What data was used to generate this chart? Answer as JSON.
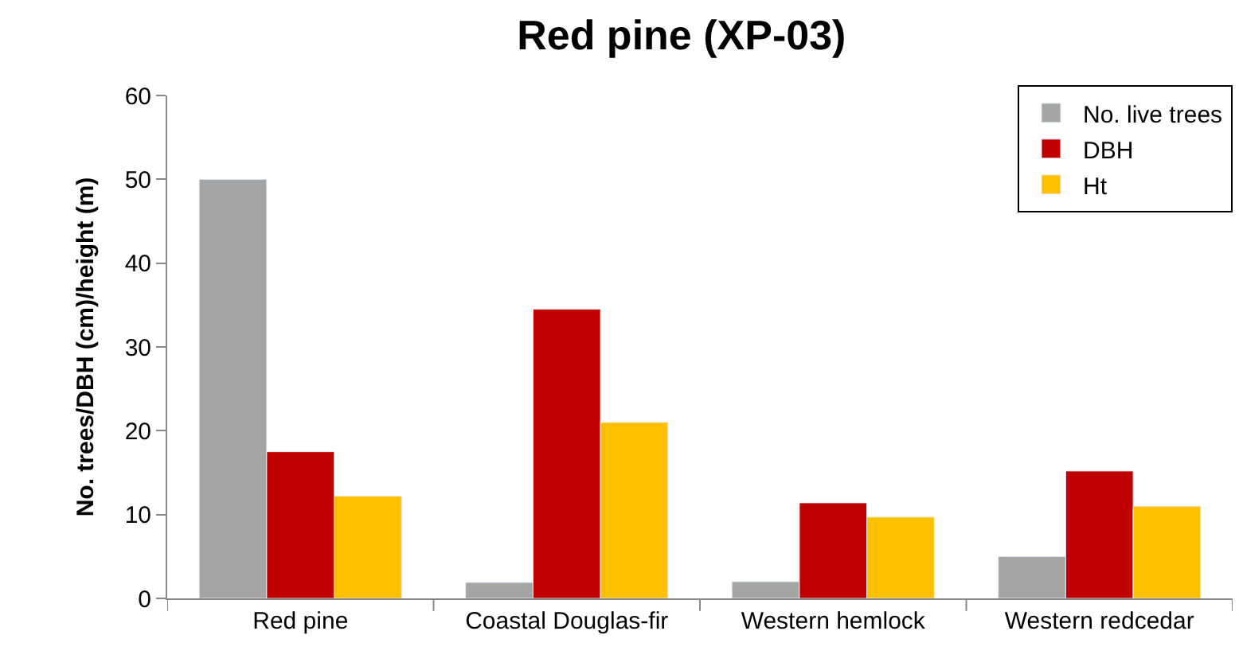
{
  "chart_data": {
    "type": "bar",
    "title": "Red pine (XP-03)",
    "ylabel": "No. trees/DBH (cm)/height (m)",
    "categories": [
      "Red pine",
      "Coastal Douglas-fir",
      "Western hemlock",
      "Western redcedar"
    ],
    "series": [
      {
        "name": "No. live trees",
        "color": "#a5a5a5",
        "values": [
          50,
          1.9,
          2,
          5
        ]
      },
      {
        "name": "DBH",
        "color": "#c00000",
        "values": [
          17.5,
          34.5,
          11.4,
          15.2
        ]
      },
      {
        "name": "Ht",
        "color": "#ffc000",
        "values": [
          12.2,
          21,
          9.7,
          11
        ]
      }
    ],
    "ylim": [
      0,
      60
    ],
    "yticks": [
      0,
      10,
      20,
      30,
      40,
      50,
      60
    ],
    "legend": "top right"
  }
}
